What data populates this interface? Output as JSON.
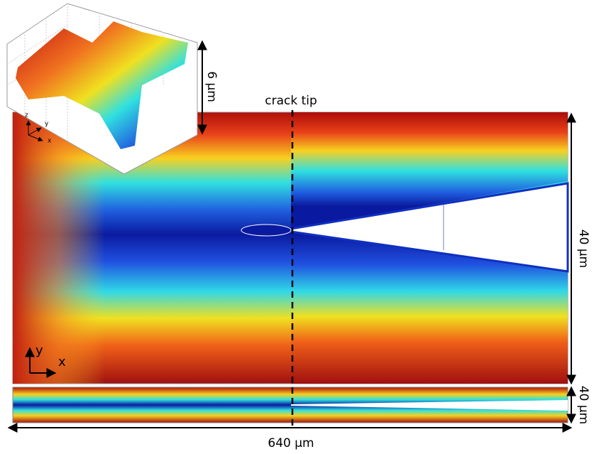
{
  "annotations": {
    "crack_tip": "crack tip",
    "inset_height": "6 µm",
    "width": "640 µm",
    "main_height": "40 µm",
    "strip_height": "40 µm"
  },
  "axes_main": {
    "x": "x",
    "y": "y"
  },
  "axes_inset": {
    "x": "x",
    "y": "y",
    "z": "z"
  }
}
